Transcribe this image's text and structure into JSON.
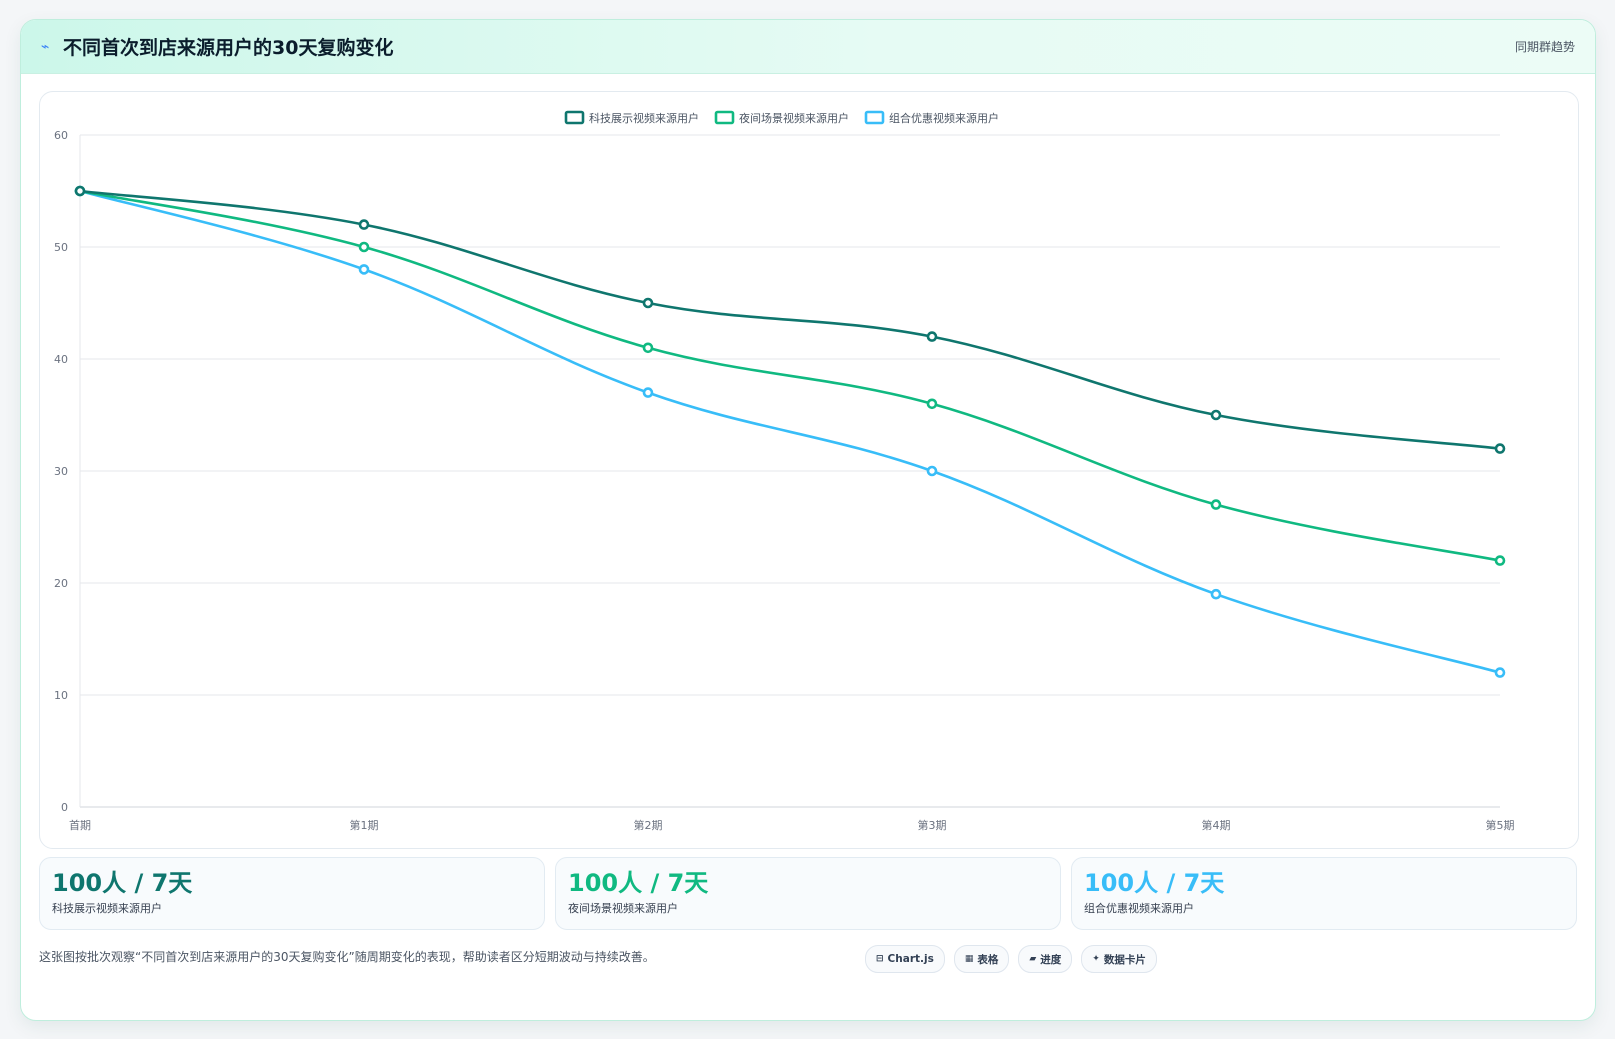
{
  "header": {
    "icon": "trend-icon",
    "title": "不同首次到店来源用户的30天复购变化",
    "subtitle": "同期群趋势"
  },
  "chart_data": {
    "type": "line",
    "title": "",
    "categories": [
      "首期",
      "第1期",
      "第2期",
      "第3期",
      "第4期",
      "第5期"
    ],
    "ylim": [
      0,
      60
    ],
    "yticks": [
      0,
      10,
      20,
      30,
      40,
      50,
      60
    ],
    "grid": true,
    "legend_position": "top-center",
    "series": [
      {
        "name": "科技展示视频来源用户",
        "color": "#0f766e",
        "values": [
          55,
          52,
          45,
          42,
          35,
          32
        ]
      },
      {
        "name": "夜间场景视频来源用户",
        "color": "#10b981",
        "values": [
          55,
          50,
          41,
          36,
          27,
          22
        ]
      },
      {
        "name": "组合优惠视频来源用户",
        "color": "#38bdf8",
        "values": [
          55,
          48,
          37,
          30,
          19,
          12
        ]
      }
    ]
  },
  "stats": [
    {
      "value": "100人 / 7天",
      "label": "科技展示视频来源用户",
      "color": "#0f766e"
    },
    {
      "value": "100人 / 7天",
      "label": "夜间场景视频来源用户",
      "color": "#10b981"
    },
    {
      "value": "100人 / 7天",
      "label": "组合优惠视频来源用户",
      "color": "#38bdf8"
    }
  ],
  "footer": {
    "note": "这张图按批次观察“不同首次到店来源用户的30天复购变化”随周期变化的表现，帮助读者区分短期波动与持续改善。",
    "tags": [
      {
        "icon": "chart-icon",
        "glyph": "⊟",
        "label": "Chart.js"
      },
      {
        "icon": "table-icon",
        "glyph": "▦",
        "label": "表格"
      },
      {
        "icon": "progress-icon",
        "glyph": "▰",
        "label": "进度"
      },
      {
        "icon": "sparkle-icon",
        "glyph": "✦",
        "label": "数据卡片"
      }
    ]
  }
}
